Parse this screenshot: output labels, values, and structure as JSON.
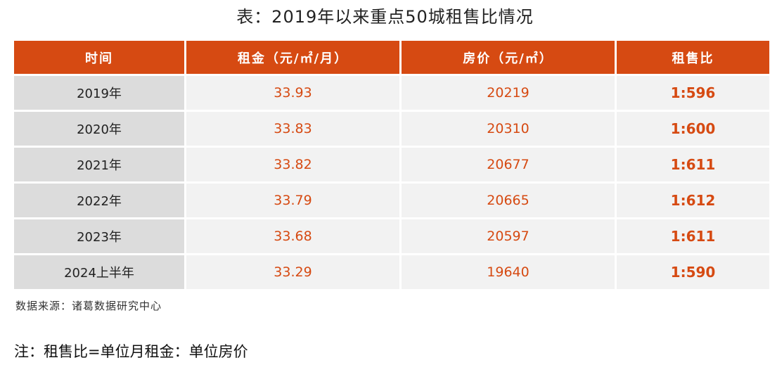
{
  "title": "表：2019年以来重点50城租售比情况",
  "table": {
    "headers": [
      "时间",
      "租金（元/㎡/月）",
      "房价（元/㎡）",
      "租售比"
    ],
    "rows": [
      {
        "time": "2019年",
        "rent": "33.93",
        "price": "20219",
        "ratio": "1:596"
      },
      {
        "time": "2020年",
        "rent": "33.83",
        "price": "20310",
        "ratio": "1:600"
      },
      {
        "time": "2021年",
        "rent": "33.82",
        "price": "20677",
        "ratio": "1:611"
      },
      {
        "time": "2022年",
        "rent": "33.79",
        "price": "20665",
        "ratio": "1:612"
      },
      {
        "time": "2023年",
        "rent": "33.68",
        "price": "20597",
        "ratio": "1:611"
      },
      {
        "time": "2024上半年",
        "rent": "33.29",
        "price": "19640",
        "ratio": "1:590"
      }
    ]
  },
  "source": "数据来源：诸葛数据研究中心",
  "note": "注：租售比=单位月租金：单位房价",
  "colors": {
    "header_bg": "#d64a12",
    "accent_text": "#d64a12",
    "year_cell_bg": "#dcdcdc",
    "value_cell_bg": "#f2f2f2"
  }
}
